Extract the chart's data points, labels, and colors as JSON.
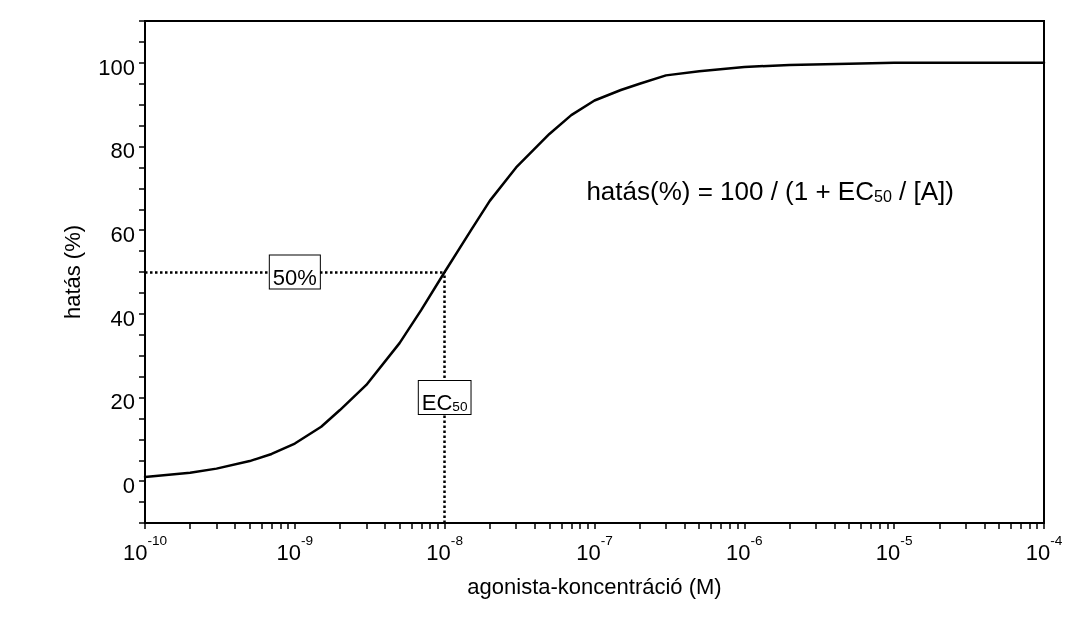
{
  "chart_data": {
    "type": "line",
    "xlabel": "agonista-koncentráció (M)",
    "ylabel": "hatás (%)",
    "log": "x",
    "x": [
      1e-10,
      2e-10,
      3e-10,
      5e-10,
      7e-10,
      1e-09,
      1.5e-09,
      2e-09,
      3e-09,
      5e-09,
      7e-09,
      1e-08,
      1.5e-08,
      2e-08,
      3e-08,
      5e-08,
      7e-08,
      1e-07,
      1.5e-07,
      2e-07,
      3e-07,
      5e-07,
      1e-06,
      2e-06,
      5e-06,
      1e-05,
      0.0001
    ],
    "series": [
      {
        "color": "#000000",
        "values": [
          1,
          2,
          3,
          4.8,
          6.5,
          9,
          13,
          17,
          23,
          33,
          41,
          50,
          60,
          67,
          75,
          83,
          87.5,
          91,
          93.5,
          95,
          97,
          98,
          99,
          99.5,
          99.8,
          100,
          100
        ]
      }
    ],
    "xlim": [
      1e-10,
      0.0001
    ],
    "xticks": [
      {
        "value": 1e-10,
        "label": "10$^{-10}$"
      },
      {
        "value": 2e-10,
        "label": null
      },
      {
        "value": 3e-10,
        "label": null
      },
      {
        "value": 4e-10,
        "label": null
      },
      {
        "value": 5e-10,
        "label": null
      },
      {
        "value": 6e-10,
        "label": null
      },
      {
        "value": 7e-10,
        "label": null
      },
      {
        "value": 8e-10,
        "label": null
      },
      {
        "value": 9e-10,
        "label": null
      },
      {
        "value": 1e-09,
        "label": "10$^{-9}$"
      },
      {
        "value": 2e-09,
        "label": null
      },
      {
        "value": 3e-09,
        "label": null
      },
      {
        "value": 4e-09,
        "label": null
      },
      {
        "value": 5e-09,
        "label": null
      },
      {
        "value": 6e-09,
        "label": null
      },
      {
        "value": 7e-09,
        "label": null
      },
      {
        "value": 8e-09,
        "label": null
      },
      {
        "value": 9e-09,
        "label": null
      },
      {
        "value": 1e-08,
        "label": "10$^{-8}$"
      },
      {
        "value": 2e-08,
        "label": null
      },
      {
        "value": 3e-08,
        "label": null
      },
      {
        "value": 4e-08,
        "label": null
      },
      {
        "value": 5e-08,
        "label": null
      },
      {
        "value": 6e-08,
        "label": null
      },
      {
        "value": 7e-08,
        "label": null
      },
      {
        "value": 8e-08,
        "label": null
      },
      {
        "value": 9e-08,
        "label": null
      },
      {
        "value": 1e-07,
        "label": "10$^{-7}$"
      },
      {
        "value": 2e-07,
        "label": null
      },
      {
        "value": 3e-07,
        "label": null
      },
      {
        "value": 4e-07,
        "label": null
      },
      {
        "value": 5e-07,
        "label": null
      },
      {
        "value": 6e-07,
        "label": null
      },
      {
        "value": 7e-07,
        "label": null
      },
      {
        "value": 8e-07,
        "label": null
      },
      {
        "value": 9e-07,
        "label": null
      },
      {
        "value": 1e-06,
        "label": "10$^{-6}$"
      },
      {
        "value": 2e-06,
        "label": null
      },
      {
        "value": 3e-06,
        "label": null
      },
      {
        "value": 4e-06,
        "label": null
      },
      {
        "value": 5e-06,
        "label": null
      },
      {
        "value": 6e-06,
        "label": null
      },
      {
        "value": 7e-06,
        "label": null
      },
      {
        "value": 8e-06,
        "label": null
      },
      {
        "value": 9e-06,
        "label": null
      },
      {
        "value": 1e-05,
        "label": "10$^{-5}$"
      },
      {
        "value": 2e-05,
        "label": null
      },
      {
        "value": 3e-05,
        "label": null
      },
      {
        "value": 4e-05,
        "label": null
      },
      {
        "value": 5e-05,
        "label": null
      },
      {
        "value": 6e-05,
        "label": null
      },
      {
        "value": 7e-05,
        "label": null
      },
      {
        "value": 8e-05,
        "label": null
      },
      {
        "value": 9e-05,
        "label": null
      },
      {
        "value": 0.0001,
        "label": "10$^{-4}$"
      }
    ],
    "ylim": [
      -10,
      110
    ],
    "yticks": [
      {
        "value": -10,
        "label": null
      },
      {
        "value": -5,
        "label": null
      },
      0,
      {
        "value": 5,
        "label": null
      },
      {
        "value": 10,
        "label": null
      },
      {
        "value": 15,
        "label": null
      },
      20,
      {
        "value": 25,
        "label": null
      },
      {
        "value": 30,
        "label": null
      },
      {
        "value": 35,
        "label": null
      },
      40,
      {
        "value": 45,
        "label": null
      },
      {
        "value": 50,
        "label": null
      },
      {
        "value": 55,
        "label": null
      },
      60,
      {
        "value": 65,
        "label": null
      },
      {
        "value": 70,
        "label": null
      },
      {
        "value": 75,
        "label": null
      },
      80,
      {
        "value": 85,
        "label": null
      },
      {
        "value": 90,
        "label": null
      },
      {
        "value": 95,
        "label": null
      },
      100,
      {
        "value": 105,
        "label": null
      },
      {
        "value": 110,
        "label": null
      }
    ],
    "ref_lines": [
      {
        "axis": "y",
        "value": 50,
        "label": "50%",
        "line_style": "dotted",
        "color": "#000000"
      },
      {
        "axis": "x",
        "value": 1e-08,
        "label": "EC$_{50}$",
        "line_style": "dotted",
        "color": "#000000"
      }
    ],
    "annotations": [
      "hatás(%) = 100 / (1 + EC$_{50}$ / [A])"
    ],
    "grid": false,
    "marker": "none",
    "line_style": "solid"
  }
}
